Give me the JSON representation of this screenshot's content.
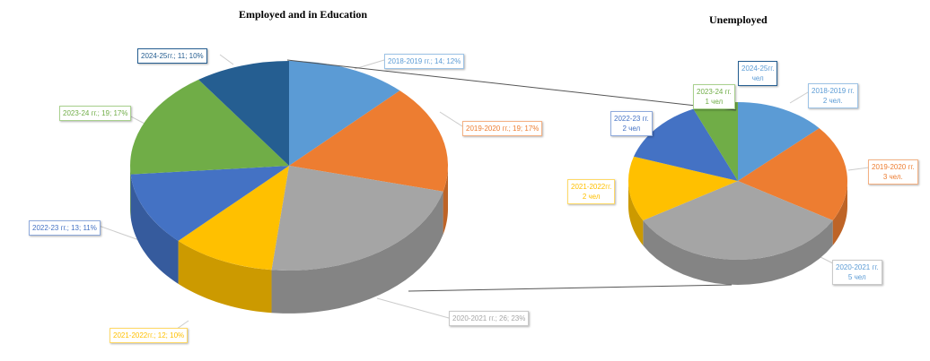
{
  "chart_data": [
    {
      "type": "pie",
      "title": "Employed and in Education",
      "categories": [
        "2018-2019 гг.",
        "2019-2020 гг.",
        "2020-2021 гг.",
        "2021-2022гг.",
        "2022-23 гг.",
        "2023-24 гг.",
        "2024-25гг."
      ],
      "values": [
        14,
        19,
        26,
        12,
        13,
        19,
        11
      ],
      "percents": [
        12,
        17,
        23,
        10,
        11,
        17,
        10
      ],
      "labels": [
        "2018-2019 гг.; 14; 12%",
        "2019-2020 гг.; 19; 17%",
        "2020-2021 гг.; 26; 23%",
        "2021-2022гг.; 12; 10%",
        "2022-23 гг.; 13; 11%",
        "2023-24 гг.; 19; 17%",
        "2024-25гг.; 11; 10%"
      ],
      "colors": [
        "#5b9bd5",
        "#ed7d31",
        "#a5a5a5",
        "#ffc000",
        "#4472c4",
        "#70ad47",
        "#255e91"
      ]
    },
    {
      "type": "pie",
      "title": "Unemployed",
      "categories": [
        "2018-2019 гг.",
        "2019-2020 гг.",
        "2020-2021 гг.",
        "2021-2022гг.",
        "2022-23 гг.",
        "2023-24 гг.",
        "2024-25гг."
      ],
      "values": [
        2,
        3,
        5,
        2,
        2,
        1,
        0
      ],
      "label_lines": [
        [
          "2018-2019 гг.",
          "2 чел."
        ],
        [
          "2019-2020 гг.",
          "3 чел."
        ],
        [
          "2020-2021 гг.",
          "5 чел"
        ],
        [
          "2021-2022гг.",
          "2 чел"
        ],
        [
          "2022-23 гг.",
          "2 чел"
        ],
        [
          "2023-24 гг.",
          "1 чел"
        ],
        [
          "2024-25гг.",
          "чел"
        ]
      ],
      "colors": [
        "#5b9bd5",
        "#ed7d31",
        "#a5a5a5",
        "#ffc000",
        "#4472c4",
        "#70ad47",
        "#255e91"
      ]
    }
  ]
}
